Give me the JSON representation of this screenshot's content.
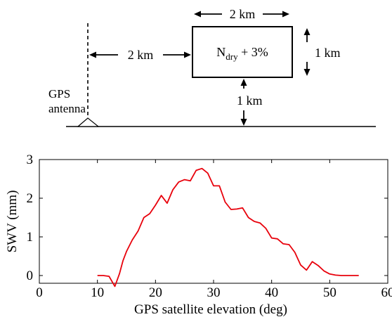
{
  "diagram": {
    "box_label": "N",
    "box_label_sub": "dry",
    "box_label_suffix": " + 3%",
    "width_label": "2 km",
    "distance_label": "2 km",
    "height_label": "1 km",
    "gap_label": "1 km",
    "antenna_label_line1": "GPS",
    "antenna_label_line2": "antenna"
  },
  "chart_data": {
    "type": "line",
    "xlabel": "GPS satellite elevation (deg)",
    "ylabel": "SWV (mm)",
    "xlim": [
      0,
      60
    ],
    "ylim": [
      -0.2,
      3
    ],
    "xticks": [
      0,
      10,
      20,
      30,
      40,
      50,
      60
    ],
    "yticks": [
      0,
      1,
      2,
      3
    ],
    "grid": false,
    "series": [
      {
        "color": "#e8000b",
        "x": [
          10,
          11,
          12,
          13,
          13.8,
          14.4,
          15,
          16,
          17,
          18,
          19,
          20,
          21,
          22,
          23,
          24,
          25,
          26,
          27,
          28,
          29,
          30,
          31,
          32,
          33,
          34,
          35,
          36,
          37,
          38,
          39,
          40,
          41,
          42,
          43,
          44,
          45,
          46,
          47,
          48,
          49,
          50,
          51,
          52,
          53,
          54,
          55
        ],
        "y": [
          0,
          0,
          -0.02,
          -0.28,
          0.05,
          0.38,
          0.62,
          0.92,
          1.15,
          1.5,
          1.6,
          1.82,
          2.07,
          1.87,
          2.22,
          2.42,
          2.48,
          2.45,
          2.72,
          2.77,
          2.65,
          2.32,
          2.32,
          1.9,
          1.71,
          1.72,
          1.75,
          1.5,
          1.4,
          1.36,
          1.22,
          0.97,
          0.95,
          0.82,
          0.8,
          0.6,
          0.27,
          0.14,
          0.36,
          0.26,
          0.12,
          0.04,
          0.01,
          0,
          0,
          0,
          0
        ]
      }
    ]
  }
}
